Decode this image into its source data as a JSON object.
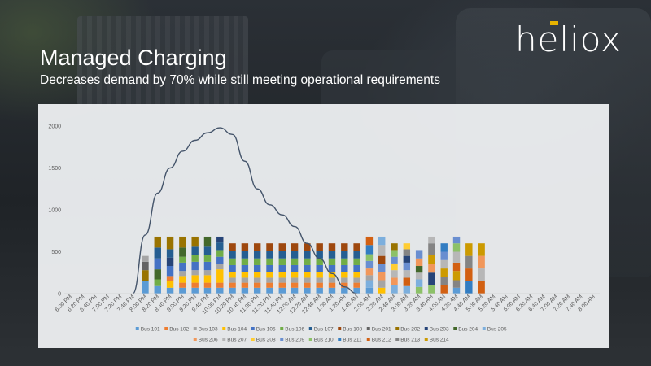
{
  "slide": {
    "title": "Managed Charging",
    "subtitle": "Decreases demand by 70% while still meeting operational requirements"
  },
  "logo": {
    "text": "heliox",
    "accent_color": "#e7b300"
  },
  "chart_data": {
    "type": "bar",
    "stacked": true,
    "grid": false,
    "legend_position": "bottom",
    "ylim": [
      0,
      2000
    ],
    "y_ticks": [
      0,
      500,
      1000,
      1500,
      2000
    ],
    "categories": [
      "6:00 PM",
      "6:20 PM",
      "6:40 PM",
      "7:00 PM",
      "7:20 PM",
      "7:40 PM",
      "8:00 PM",
      "8:20 PM",
      "8:40 PM",
      "9:00 PM",
      "9:20 PM",
      "9:40 PM",
      "10:00 PM",
      "10:20 PM",
      "10:40 PM",
      "11:00 PM",
      "11:20 PM",
      "11:40 PM",
      "12:00 AM",
      "12:20 AM",
      "12:40 AM",
      "1:00 AM",
      "1:20 AM",
      "1:40 AM",
      "2:00 AM",
      "2:20 AM",
      "2:40 AM",
      "3:00 AM",
      "3:20 AM",
      "3:40 AM",
      "4:00 AM",
      "4:20 AM",
      "4:40 AM",
      "5:00 AM",
      "5:20 AM",
      "5:40 AM",
      "6:00 AM",
      "6:20 AM",
      "6:40 AM",
      "7:00 AM",
      "7:20 AM",
      "7:40 AM",
      "8:00 AM"
    ],
    "totals": [
      0,
      0,
      0,
      0,
      0,
      0,
      450,
      680,
      680,
      680,
      680,
      680,
      680,
      600,
      600,
      600,
      600,
      600,
      600,
      600,
      600,
      600,
      600,
      600,
      680,
      680,
      600,
      600,
      520,
      680,
      600,
      600,
      680,
      600,
      600,
      0,
      0,
      0,
      0,
      0,
      0,
      0,
      0
    ],
    "series": [
      {
        "name": "Bus 101",
        "color": "#5b9bd5"
      },
      {
        "name": "Bus 102",
        "color": "#ed7d31"
      },
      {
        "name": "Bus 103",
        "color": "#a5a5a5"
      },
      {
        "name": "Bus 104",
        "color": "#ffc000"
      },
      {
        "name": "Bus 105",
        "color": "#4472c4"
      },
      {
        "name": "Bus 106",
        "color": "#70ad47"
      },
      {
        "name": "Bus 107",
        "color": "#255e91"
      },
      {
        "name": "Bus 108",
        "color": "#9e480e"
      },
      {
        "name": "Bus 201",
        "color": "#636363"
      },
      {
        "name": "Bus 202",
        "color": "#997300"
      },
      {
        "name": "Bus 203",
        "color": "#264478"
      },
      {
        "name": "Bus 204",
        "color": "#43682b"
      },
      {
        "name": "Bus 205",
        "color": "#7cafdd"
      },
      {
        "name": "Bus 206",
        "color": "#f1975a"
      },
      {
        "name": "Bus 207",
        "color": "#b7b7b7"
      },
      {
        "name": "Bus 208",
        "color": "#ffcd33"
      },
      {
        "name": "Bus 209",
        "color": "#698ed0"
      },
      {
        "name": "Bus 210",
        "color": "#8cc168"
      },
      {
        "name": "Bus 211",
        "color": "#327dc2"
      },
      {
        "name": "Bus 212",
        "color": "#d26012"
      },
      {
        "name": "Bus 213",
        "color": "#848484"
      },
      {
        "name": "Bus 214",
        "color": "#cc9a00"
      }
    ],
    "stack_segments": [
      [],
      [],
      [],
      [],
      [],
      [],
      [
        [
          0,
          150
        ],
        [
          9,
          130
        ],
        [
          8,
          100
        ],
        [
          2,
          70
        ]
      ],
      [
        [
          0,
          90
        ],
        [
          5,
          80
        ],
        [
          11,
          120
        ],
        [
          4,
          130
        ],
        [
          6,
          130
        ],
        [
          9,
          130
        ]
      ],
      [
        [
          0,
          70
        ],
        [
          3,
          80
        ],
        [
          1,
          60
        ],
        [
          4,
          120
        ],
        [
          10,
          100
        ],
        [
          6,
          100
        ],
        [
          9,
          150
        ]
      ],
      [
        [
          0,
          70
        ],
        [
          1,
          60
        ],
        [
          3,
          80
        ],
        [
          2,
          60
        ],
        [
          4,
          100
        ],
        [
          5,
          70
        ],
        [
          11,
          110
        ],
        [
          9,
          130
        ]
      ],
      [
        [
          0,
          70
        ],
        [
          1,
          60
        ],
        [
          3,
          90
        ],
        [
          2,
          60
        ],
        [
          4,
          100
        ],
        [
          5,
          80
        ],
        [
          6,
          100
        ],
        [
          9,
          120
        ]
      ],
      [
        [
          0,
          70
        ],
        [
          1,
          60
        ],
        [
          3,
          90
        ],
        [
          2,
          60
        ],
        [
          4,
          100
        ],
        [
          5,
          80
        ],
        [
          6,
          100
        ],
        [
          11,
          120
        ]
      ],
      [
        [
          0,
          70
        ],
        [
          1,
          60
        ],
        [
          3,
          160
        ],
        [
          2,
          60
        ],
        [
          4,
          90
        ],
        [
          5,
          80
        ],
        [
          6,
          90
        ],
        [
          10,
          70
        ]
      ],
      [
        [
          0,
          70
        ],
        [
          1,
          60
        ],
        [
          2,
          60
        ],
        [
          3,
          70
        ],
        [
          4,
          80
        ],
        [
          5,
          80
        ],
        [
          6,
          90
        ],
        [
          7,
          90
        ]
      ],
      [
        [
          0,
          70
        ],
        [
          1,
          60
        ],
        [
          2,
          60
        ],
        [
          3,
          70
        ],
        [
          4,
          80
        ],
        [
          5,
          80
        ],
        [
          6,
          90
        ],
        [
          7,
          90
        ]
      ],
      [
        [
          0,
          70
        ],
        [
          1,
          60
        ],
        [
          2,
          60
        ],
        [
          3,
          70
        ],
        [
          4,
          80
        ],
        [
          5,
          80
        ],
        [
          6,
          90
        ],
        [
          7,
          90
        ]
      ],
      [
        [
          0,
          70
        ],
        [
          1,
          60
        ],
        [
          2,
          60
        ],
        [
          3,
          70
        ],
        [
          4,
          80
        ],
        [
          5,
          80
        ],
        [
          6,
          90
        ],
        [
          7,
          90
        ]
      ],
      [
        [
          0,
          70
        ],
        [
          1,
          60
        ],
        [
          2,
          60
        ],
        [
          3,
          70
        ],
        [
          4,
          80
        ],
        [
          5,
          80
        ],
        [
          6,
          90
        ],
        [
          7,
          90
        ]
      ],
      [
        [
          0,
          70
        ],
        [
          1,
          60
        ],
        [
          2,
          60
        ],
        [
          3,
          70
        ],
        [
          4,
          80
        ],
        [
          5,
          80
        ],
        [
          6,
          90
        ],
        [
          7,
          90
        ]
      ],
      [
        [
          0,
          70
        ],
        [
          1,
          60
        ],
        [
          2,
          60
        ],
        [
          3,
          70
        ],
        [
          4,
          80
        ],
        [
          5,
          80
        ],
        [
          6,
          90
        ],
        [
          7,
          90
        ]
      ],
      [
        [
          0,
          70
        ],
        [
          1,
          60
        ],
        [
          2,
          60
        ],
        [
          3,
          70
        ],
        [
          4,
          80
        ],
        [
          5,
          80
        ],
        [
          6,
          90
        ],
        [
          7,
          90
        ]
      ],
      [
        [
          0,
          70
        ],
        [
          1,
          60
        ],
        [
          2,
          60
        ],
        [
          3,
          70
        ],
        [
          4,
          80
        ],
        [
          5,
          80
        ],
        [
          6,
          90
        ],
        [
          7,
          90
        ]
      ],
      [
        [
          0,
          70
        ],
        [
          1,
          60
        ],
        [
          2,
          60
        ],
        [
          3,
          70
        ],
        [
          4,
          80
        ],
        [
          5,
          80
        ],
        [
          6,
          90
        ],
        [
          7,
          90
        ]
      ],
      [
        [
          0,
          70
        ],
        [
          1,
          60
        ],
        [
          2,
          60
        ],
        [
          3,
          70
        ],
        [
          4,
          80
        ],
        [
          5,
          80
        ],
        [
          6,
          90
        ],
        [
          7,
          90
        ]
      ],
      [
        [
          0,
          70
        ],
        [
          12,
          90
        ],
        [
          2,
          60
        ],
        [
          13,
          80
        ],
        [
          16,
          90
        ],
        [
          17,
          80
        ],
        [
          18,
          110
        ],
        [
          19,
          100
        ]
      ],
      [
        [
          3,
          70
        ],
        [
          2,
          90
        ],
        [
          13,
          100
        ],
        [
          16,
          90
        ],
        [
          7,
          100
        ],
        [
          14,
          130
        ],
        [
          12,
          100
        ]
      ],
      [
        [
          12,
          100
        ],
        [
          13,
          90
        ],
        [
          14,
          90
        ],
        [
          15,
          80
        ],
        [
          16,
          80
        ],
        [
          17,
          80
        ],
        [
          9,
          80
        ]
      ],
      [
        [
          12,
          90
        ],
        [
          19,
          100
        ],
        [
          14,
          90
        ],
        [
          16,
          90
        ],
        [
          10,
          80
        ],
        [
          20,
          80
        ],
        [
          15,
          70
        ]
      ],
      [
        [
          17,
          80
        ],
        [
          12,
          90
        ],
        [
          14,
          80
        ],
        [
          11,
          80
        ],
        [
          13,
          90
        ],
        [
          16,
          100
        ]
      ],
      [
        [
          17,
          100
        ],
        [
          10,
          150
        ],
        [
          13,
          100
        ],
        [
          21,
          110
        ],
        [
          20,
          140
        ],
        [
          14,
          80
        ]
      ],
      [
        [
          19,
          100
        ],
        [
          20,
          100
        ],
        [
          21,
          100
        ],
        [
          14,
          100
        ],
        [
          16,
          100
        ],
        [
          18,
          100
        ]
      ],
      [
        [
          0,
          70
        ],
        [
          20,
          90
        ],
        [
          21,
          110
        ],
        [
          19,
          100
        ],
        [
          14,
          130
        ],
        [
          17,
          100
        ],
        [
          16,
          80
        ]
      ],
      [
        [
          18,
          150
        ],
        [
          19,
          150
        ],
        [
          20,
          150
        ],
        [
          21,
          150
        ]
      ],
      [
        [
          19,
          150
        ],
        [
          14,
          150
        ],
        [
          13,
          150
        ],
        [
          21,
          150
        ]
      ],
      [],
      [],
      [],
      [],
      [],
      [],
      [],
      [],
      []
    ],
    "line": {
      "color": "#44546a",
      "points": [
        [
          5,
          0
        ],
        [
          6,
          700
        ],
        [
          7,
          1200
        ],
        [
          8,
          1500
        ],
        [
          9,
          1700
        ],
        [
          10,
          1830
        ],
        [
          11,
          1920
        ],
        [
          12,
          1980
        ],
        [
          13,
          1900
        ],
        [
          14,
          1580
        ],
        [
          15,
          1250
        ],
        [
          16,
          1060
        ],
        [
          17,
          940
        ],
        [
          18,
          800
        ],
        [
          19,
          600
        ],
        [
          20,
          420
        ],
        [
          21,
          240
        ],
        [
          22,
          80
        ],
        [
          23,
          0
        ]
      ]
    }
  }
}
